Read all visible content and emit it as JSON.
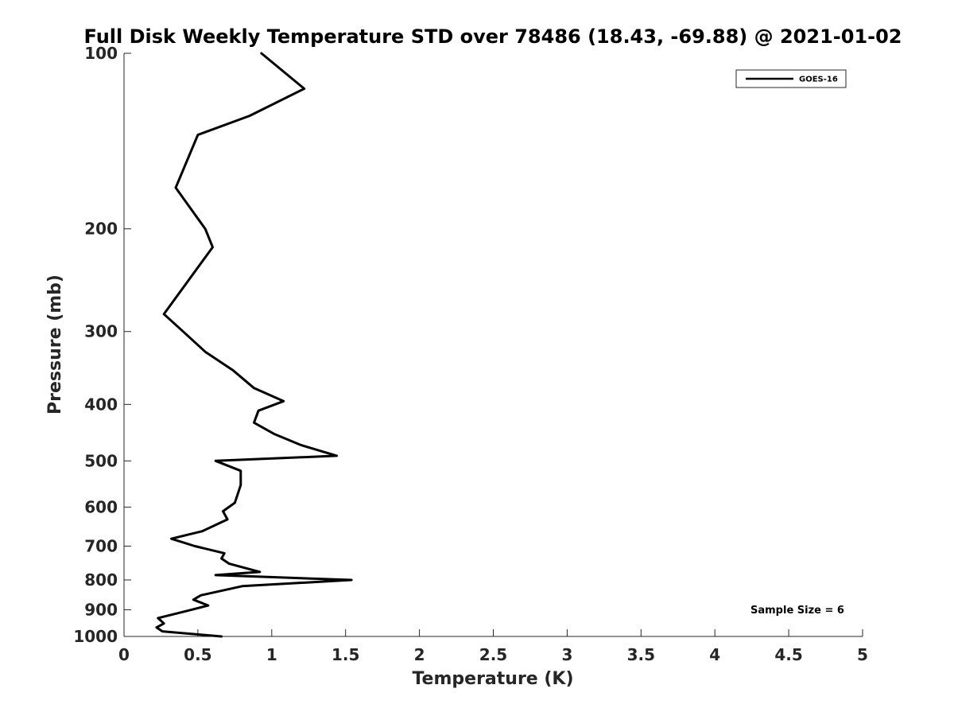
{
  "chart_data": {
    "type": "line",
    "title": "Full Disk Weekly Temperature STD over 78486 (18.43, -69.88) @ 2021-01-02",
    "xlabel": "Temperature (K)",
    "ylabel": "Pressure (mb)",
    "xlim": [
      0,
      5
    ],
    "ylim": [
      100,
      1000
    ],
    "yscale": "log",
    "y_reversed": true,
    "grid": false,
    "legend_placement": "top-right",
    "xticks": [
      0,
      0.5,
      1,
      1.5,
      2,
      2.5,
      3,
      3.5,
      4,
      4.5,
      5
    ],
    "xtick_labels": [
      "0",
      "0.5",
      "1",
      "1.5",
      "2",
      "2.5",
      "3",
      "3.5",
      "4",
      "4.5",
      "5"
    ],
    "yticks": [
      100,
      200,
      300,
      400,
      500,
      600,
      700,
      800,
      900,
      1000
    ],
    "ytick_labels": [
      "100",
      "200",
      "300",
      "400",
      "500",
      "600",
      "700",
      "800",
      "900",
      "1000"
    ],
    "series": [
      {
        "name": "GOES-16",
        "color": "#000000",
        "x": [
          0.93,
          1.22,
          0.85,
          0.5,
          0.35,
          0.55,
          0.6,
          0.27,
          0.4,
          0.55,
          0.74,
          0.88,
          1.08,
          0.91,
          0.88,
          1.02,
          1.2,
          1.44,
          0.62,
          0.79,
          0.79,
          0.75,
          0.67,
          0.7,
          0.53,
          0.32,
          0.48,
          0.68,
          0.66,
          0.71,
          0.92,
          0.62,
          1.54,
          0.8,
          0.52,
          0.47,
          0.57,
          0.42,
          0.23,
          0.27,
          0.22,
          0.26,
          0.66
        ],
        "y": [
          100,
          115,
          128,
          138,
          170,
          200,
          215,
          280,
          300,
          325,
          350,
          375,
          395,
          410,
          430,
          450,
          470,
          490,
          500,
          520,
          550,
          590,
          610,
          630,
          660,
          680,
          700,
          720,
          735,
          750,
          775,
          785,
          800,
          820,
          850,
          865,
          885,
          905,
          930,
          950,
          965,
          980,
          1000
        ]
      }
    ],
    "legend": [
      "GOES-16"
    ],
    "annotations": [
      "Sample Size = 6"
    ]
  }
}
